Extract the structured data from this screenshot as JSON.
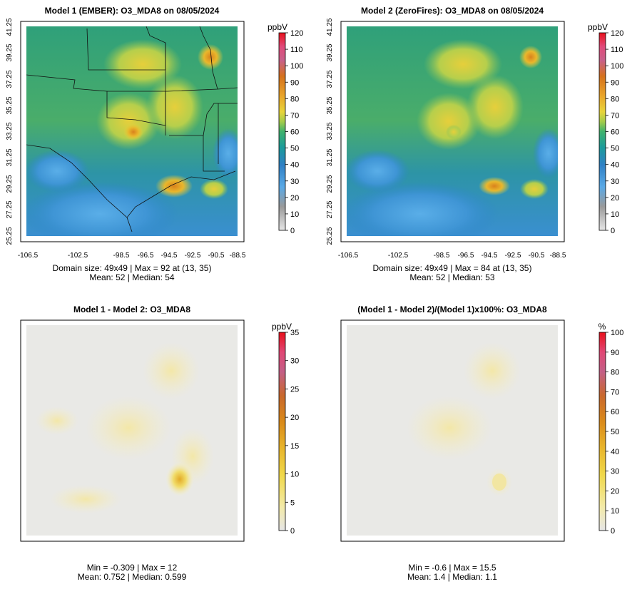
{
  "chart_data": [
    {
      "type": "heatmap",
      "title": "Model 1 (EMBER): O3_MDA8 on 08/05/2024",
      "colorbar_title": "ppbV",
      "colorbar_ticks": [
        "0",
        "10",
        "20",
        "30",
        "40",
        "50",
        "60",
        "70",
        "80",
        "90",
        "100",
        "110",
        "120"
      ],
      "colorbar_range": [
        0,
        120
      ],
      "x_ticks": [
        "-106.5",
        "-102.5",
        "-98.5",
        "-96.5",
        "-94.5",
        "-92.5",
        "-90.5",
        "-88.5"
      ],
      "y_ticks": [
        "25.25",
        "27.25",
        "29.25",
        "31.25",
        "33.25",
        "35.25",
        "37.25",
        "39.25",
        "41.25"
      ],
      "stats_line1": "Domain size: 49x49 | Max = 92 at (13, 35)",
      "stats_line2": "Mean: 52 |  Median: 54",
      "grid": "49x49",
      "max": 92,
      "mean": 52,
      "median": 54
    },
    {
      "type": "heatmap",
      "title": "Model 2 (ZeroFires): O3_MDA8 on 08/05/2024",
      "colorbar_title": "ppbV",
      "colorbar_ticks": [
        "0",
        "10",
        "20",
        "30",
        "40",
        "50",
        "60",
        "70",
        "80",
        "90",
        "100",
        "110",
        "120"
      ],
      "colorbar_range": [
        0,
        120
      ],
      "x_ticks": [
        "-106.5",
        "-102.5",
        "-98.5",
        "-96.5",
        "-94.5",
        "-92.5",
        "-90.5",
        "-88.5"
      ],
      "y_ticks": [
        "25.25",
        "27.25",
        "29.25",
        "31.25",
        "33.25",
        "35.25",
        "37.25",
        "39.25",
        "41.25"
      ],
      "stats_line1": "Domain size: 49x49 | Max = 84 at (13, 35)",
      "stats_line2": "Mean: 52 |  Median: 53",
      "grid": "49x49",
      "max": 84,
      "mean": 52,
      "median": 53
    },
    {
      "type": "heatmap",
      "title": "Model 1 - Model 2: O3_MDA8",
      "colorbar_title": "ppbV",
      "colorbar_ticks": [
        "0",
        "5",
        "10",
        "15",
        "20",
        "25",
        "30",
        "35"
      ],
      "colorbar_range": [
        0,
        35
      ],
      "stats_line1": "Min = -0.309 | Max = 12",
      "stats_line2": "Mean: 0.752 |  Median: 0.599",
      "min": -0.309,
      "max": 12,
      "mean": 0.752,
      "median": 0.599
    },
    {
      "type": "heatmap",
      "title": "(Model 1 - Model 2)/(Model 1)x100%: O3_MDA8",
      "colorbar_title": "%",
      "colorbar_ticks": [
        "0",
        "10",
        "20",
        "30",
        "40",
        "50",
        "60",
        "70",
        "80",
        "90",
        "100"
      ],
      "colorbar_range": [
        0,
        100
      ],
      "stats_line1": "Min = -0.6 | Max = 15.5",
      "stats_line2": "Mean: 1.4 |  Median: 1.1",
      "min": -0.6,
      "max": 15.5,
      "mean": 1.4,
      "median": 1.1
    }
  ]
}
